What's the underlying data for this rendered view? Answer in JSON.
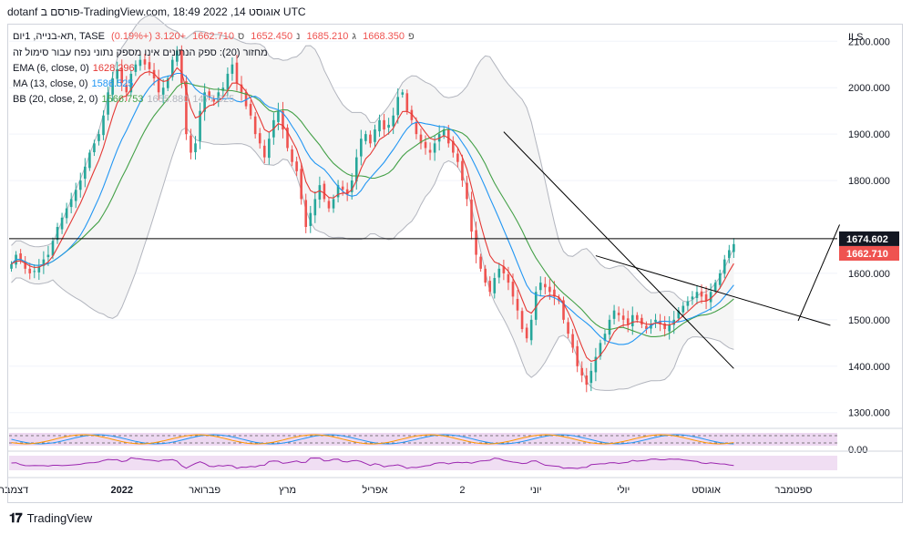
{
  "header": {
    "publisher": "dotanf פורסם ב-TradingView.com, 18:49 2022 ,14 אוגוסט UTC"
  },
  "legend": {
    "symbol": "תא-בנייה, 1יום, TASE",
    "ohlc": {
      "open_label": "פ",
      "open": "1668.350",
      "high_label": "ג",
      "high": "1685.210",
      "low_label": "נ",
      "low": "1652.450",
      "close_label": "ס",
      "close": "1662.710",
      "change": "+3.120 (+0.19%)"
    },
    "volume_note": "מחזור (20): ספק הנתונים אינו מספק נתוני נפח עבור סימול זה",
    "ema": {
      "label": "EMA (6, close, 0)",
      "value": "1628.296"
    },
    "ma": {
      "label": "MA (13, close, 0)",
      "value": "1586.525"
    },
    "bb": {
      "label": "BB (20, close, 2, 0)",
      "v1": "1566.753",
      "v2": "1655.880",
      "v3": "1477.625"
    }
  },
  "footer": {
    "brand": "TradingView"
  },
  "colors": {
    "up": "#26a69a",
    "down": "#ef5350",
    "ema": "#e53935",
    "ma": "#2196f3",
    "bb_mid": "#43a047",
    "bb_band": "#b2b5be",
    "trend": "#000000",
    "osc_fill": "#e1bee7",
    "osc_line1": "#2196f3",
    "osc_line2": "#ff9800",
    "rsi": "#9c27b0"
  },
  "chart_data": {
    "type": "candlestick",
    "currency": "ILS",
    "y_range": [
      1270,
      2130
    ],
    "y_ticks": [
      "2100.000",
      "2000.000",
      "1900.000",
      "1800.000",
      "1600.000",
      "1500.000",
      "1400.000",
      "1300.000"
    ],
    "y_tick_values": [
      2100,
      2000,
      1900,
      1800,
      1600,
      1500,
      1400,
      1300
    ],
    "horizontal_level": {
      "label": "1674.602",
      "value": 1674.602
    },
    "last_price": {
      "label": "1662.710",
      "value": 1662.71
    },
    "x_labels": [
      {
        "text": "דצמבר",
        "pos": 0.5
      },
      {
        "text": "2022",
        "pos": 24
      },
      {
        "text": "פברואר",
        "pos": 42
      },
      {
        "text": "מרץ",
        "pos": 60
      },
      {
        "text": "אפריל",
        "pos": 79
      },
      {
        "text": "2",
        "pos": 98
      },
      {
        "text": "יוני",
        "pos": 114
      },
      {
        "text": "יולי",
        "pos": 133
      },
      {
        "text": "אוגוסט",
        "pos": 151
      },
      {
        "text": "ספטמבר",
        "pos": 170
      }
    ],
    "closes": [
      1620,
      1640,
      1630,
      1610,
      1600,
      1605,
      1615,
      1630,
      1640,
      1670,
      1700,
      1720,
      1740,
      1760,
      1780,
      1800,
      1830,
      1860,
      1880,
      1900,
      1940,
      1990,
      2020,
      2040,
      2010,
      1990,
      2030,
      2050,
      2060,
      2050,
      2040,
      2020,
      1990,
      2000,
      2020,
      2060,
      2080,
      2010,
      1900,
      1860,
      1880,
      1950,
      1990,
      1980,
      1970,
      1990,
      2000,
      2030,
      2050,
      2010,
      1990,
      1960,
      1940,
      1900,
      1880,
      1850,
      1890,
      1930,
      1950,
      1910,
      1870,
      1840,
      1820,
      1760,
      1700,
      1730,
      1760,
      1790,
      1760,
      1740,
      1760,
      1790,
      1780,
      1770,
      1800,
      1850,
      1890,
      1900,
      1880,
      1910,
      1930,
      1910,
      1920,
      1940,
      1980,
      1990,
      1950,
      1930,
      1900,
      1880,
      1870,
      1860,
      1880,
      1900,
      1910,
      1880,
      1860,
      1840,
      1800,
      1760,
      1690,
      1640,
      1610,
      1580,
      1560,
      1590,
      1610,
      1600,
      1580,
      1550,
      1520,
      1480,
      1460,
      1500,
      1560,
      1580,
      1570,
      1560,
      1550,
      1540,
      1500,
      1470,
      1440,
      1400,
      1380,
      1360,
      1390,
      1420,
      1450,
      1470,
      1500,
      1520,
      1510,
      1500,
      1490,
      1510,
      1500,
      1490,
      1480,
      1490,
      1500,
      1490,
      1480,
      1490,
      1500,
      1520,
      1530,
      1540,
      1550,
      1560,
      1550,
      1540,
      1560,
      1580,
      1600,
      1630,
      1650,
      1663
    ],
    "ema": {
      "name": "EMA",
      "value_label": "1628.296"
    },
    "ma": {
      "name": "MA",
      "value_label": "1586.525"
    },
    "bb": {
      "name": "BB"
    },
    "trendlines": [
      {
        "from": [
          107,
          1905
        ],
        "to": [
          157,
          1395
        ]
      },
      {
        "from": [
          127,
          1638
        ],
        "to": [
          178,
          1488
        ]
      },
      {
        "from": [
          171,
          1498
        ],
        "to": [
          180,
          1705
        ]
      }
    ]
  }
}
